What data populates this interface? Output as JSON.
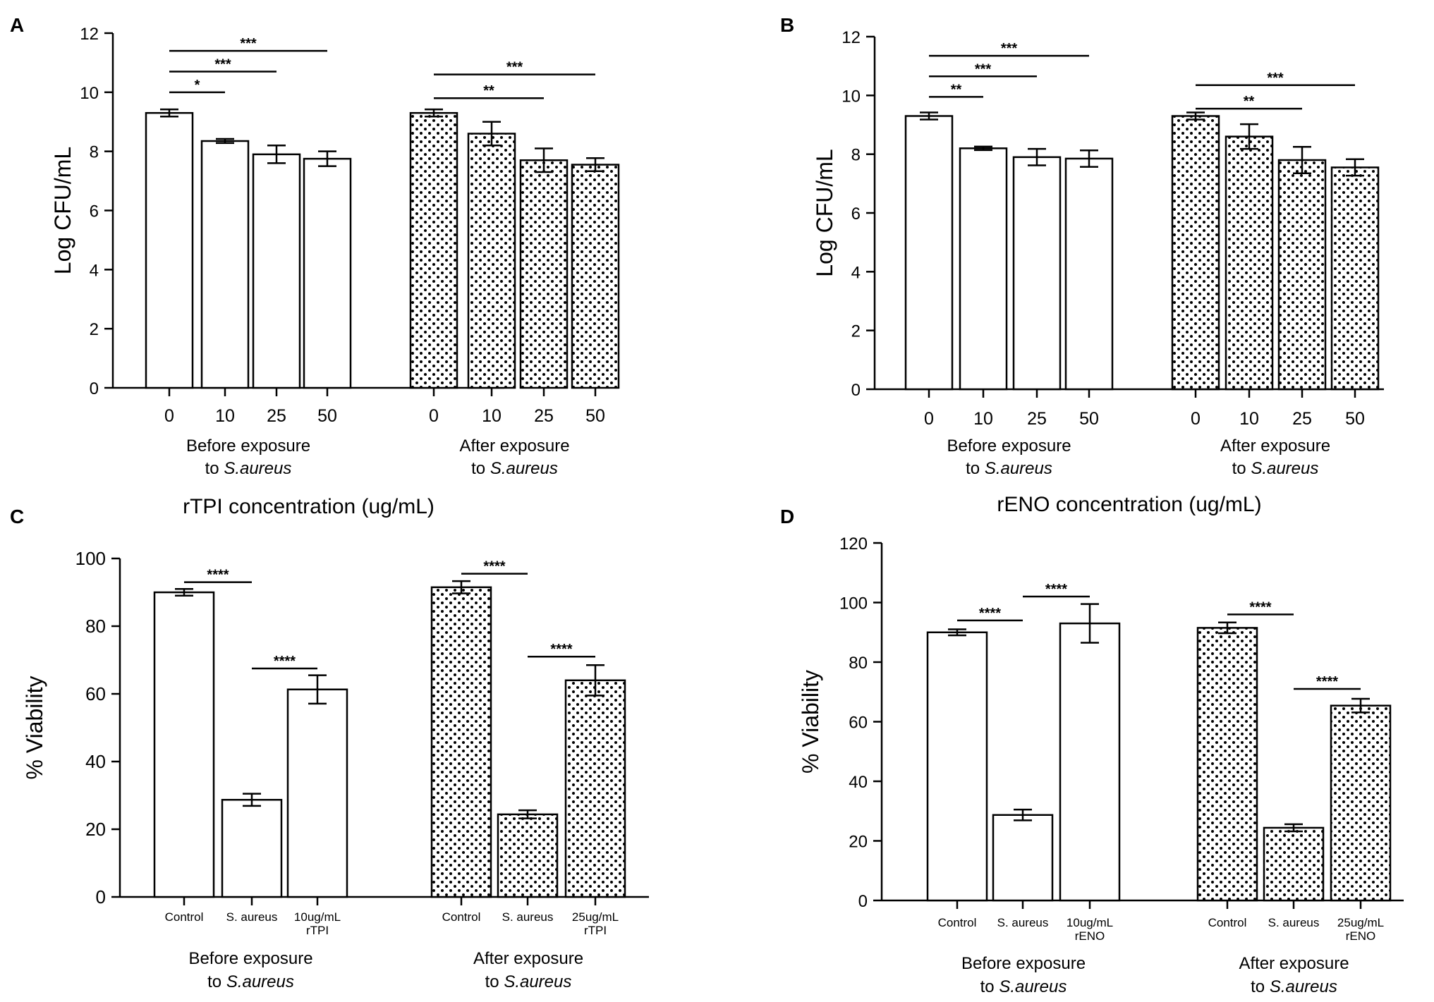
{
  "figure": {
    "colors": {
      "ink": "#000000",
      "background": "#ffffff"
    }
  },
  "chart_data": [
    {
      "type": "bar",
      "panel": "A",
      "ylabel": "Log CFU/mL",
      "xlabel": "rTPI concentration (ug/mL)",
      "ylim": [
        0,
        12
      ],
      "yticks": [
        "0",
        "2",
        "4",
        "6",
        "8",
        "10",
        "12"
      ],
      "groups": [
        {
          "label_line1": "Before exposure",
          "label_line2_prefix": "to ",
          "label_line2_italic": "S.aureus",
          "pattern": "solid",
          "categories": [
            "0",
            "10",
            "25",
            "50"
          ],
          "values": [
            9.3,
            8.35,
            7.9,
            7.75
          ],
          "errors": [
            0.12,
            0.07,
            0.3,
            0.25
          ]
        },
        {
          "label_line1": "After exposure",
          "label_line2_prefix": "to ",
          "label_line2_italic": "S.aureus",
          "pattern": "dots",
          "categories": [
            "0",
            "10",
            "25",
            "50"
          ],
          "values": [
            9.3,
            8.6,
            7.7,
            7.55
          ],
          "errors": [
            0.12,
            0.4,
            0.4,
            0.22
          ]
        }
      ],
      "significance": [
        {
          "from": [
            0,
            0
          ],
          "to": [
            0,
            1
          ],
          "label": "*",
          "y": 10.0
        },
        {
          "from": [
            0,
            0
          ],
          "to": [
            0,
            2
          ],
          "label": "***",
          "y": 10.7
        },
        {
          "from": [
            0,
            0
          ],
          "to": [
            0,
            3
          ],
          "label": "***",
          "y": 11.4
        },
        {
          "from": [
            1,
            0
          ],
          "to": [
            1,
            2
          ],
          "label": "**",
          "y": 9.8
        },
        {
          "from": [
            1,
            0
          ],
          "to": [
            1,
            3
          ],
          "label": "***",
          "y": 10.6
        }
      ]
    },
    {
      "type": "bar",
      "panel": "B",
      "ylabel": "Log CFU/mL",
      "xlabel": "rENO concentration (ug/mL)",
      "ylim": [
        0,
        12
      ],
      "yticks": [
        "0",
        "2",
        "4",
        "6",
        "8",
        "10",
        "12"
      ],
      "groups": [
        {
          "label_line1": "Before exposure",
          "label_line2_prefix": "to ",
          "label_line2_italic": "S.aureus",
          "pattern": "solid",
          "categories": [
            "0",
            "10",
            "25",
            "50"
          ],
          "values": [
            9.3,
            8.2,
            7.9,
            7.85
          ],
          "errors": [
            0.12,
            0.06,
            0.28,
            0.28
          ]
        },
        {
          "label_line1": "After exposure",
          "label_line2_prefix": "to ",
          "label_line2_italic": "S.aureus",
          "pattern": "dots",
          "categories": [
            "0",
            "10",
            "25",
            "50"
          ],
          "values": [
            9.3,
            8.6,
            7.8,
            7.55
          ],
          "errors": [
            0.12,
            0.42,
            0.45,
            0.28
          ]
        }
      ],
      "significance": [
        {
          "from": [
            0,
            0
          ],
          "to": [
            0,
            1
          ],
          "label": "**",
          "y": 9.95
        },
        {
          "from": [
            0,
            0
          ],
          "to": [
            0,
            2
          ],
          "label": "***",
          "y": 10.65
        },
        {
          "from": [
            0,
            0
          ],
          "to": [
            0,
            3
          ],
          "label": "***",
          "y": 11.35
        },
        {
          "from": [
            1,
            0
          ],
          "to": [
            1,
            2
          ],
          "label": "**",
          "y": 9.55
        },
        {
          "from": [
            1,
            0
          ],
          "to": [
            1,
            3
          ],
          "label": "***",
          "y": 10.35
        }
      ]
    },
    {
      "type": "bar",
      "panel": "C",
      "ylabel": "% Viability",
      "xlabel": "",
      "ylim": [
        0,
        100
      ],
      "yticks": [
        "0",
        "20",
        "40",
        "60",
        "80",
        "100"
      ],
      "groups": [
        {
          "label_line1": "Before exposure",
          "label_line2_prefix": "to ",
          "label_line2_italic": "S.aureus",
          "pattern": "solid",
          "categories": [
            "Control",
            "S. aureus",
            "10ug/mL\nrTPI"
          ],
          "values": [
            90,
            28.7,
            61.3
          ],
          "errors": [
            1.0,
            1.8,
            4.2
          ]
        },
        {
          "label_line1": "After exposure",
          "label_line2_prefix": "to ",
          "label_line2_italic": "S.aureus",
          "pattern": "dots",
          "categories": [
            "Control",
            "S. aureus",
            "25ug/mL\nrTPI"
          ],
          "values": [
            91.5,
            24.4,
            64.0
          ],
          "errors": [
            1.8,
            1.2,
            4.5
          ]
        }
      ],
      "significance": [
        {
          "from": [
            0,
            0
          ],
          "to": [
            0,
            1
          ],
          "label": "****",
          "y": 93
        },
        {
          "from": [
            0,
            1
          ],
          "to": [
            0,
            2
          ],
          "label": "****",
          "y": 67.5
        },
        {
          "from": [
            1,
            0
          ],
          "to": [
            1,
            1
          ],
          "label": "****",
          "y": 95.5
        },
        {
          "from": [
            1,
            1
          ],
          "to": [
            1,
            2
          ],
          "label": "****",
          "y": 71
        }
      ]
    },
    {
      "type": "bar",
      "panel": "D",
      "ylabel": "% Viability",
      "xlabel": "",
      "ylim": [
        0,
        120
      ],
      "yticks": [
        "0",
        "20",
        "40",
        "60",
        "80",
        "100",
        "120"
      ],
      "groups": [
        {
          "label_line1": "Before exposure",
          "label_line2_prefix": "to ",
          "label_line2_italic": "S.aureus",
          "pattern": "solid",
          "categories": [
            "Control",
            "S. aureus",
            "10ug/mL\nrENO"
          ],
          "values": [
            90,
            28.7,
            93.0
          ],
          "errors": [
            1.0,
            1.8,
            6.5
          ]
        },
        {
          "label_line1": "After exposure",
          "label_line2_prefix": "to ",
          "label_line2_italic": "S.aureus",
          "pattern": "dots",
          "categories": [
            "Control",
            "S. aureus",
            "25ug/mL\nrENO"
          ],
          "values": [
            91.5,
            24.4,
            65.4
          ],
          "errors": [
            1.8,
            1.2,
            2.3
          ]
        }
      ],
      "significance": [
        {
          "from": [
            0,
            0
          ],
          "to": [
            0,
            1
          ],
          "label": "****",
          "y": 94
        },
        {
          "from": [
            0,
            1
          ],
          "to": [
            0,
            2
          ],
          "label": "****",
          "y": 102
        },
        {
          "from": [
            1,
            0
          ],
          "to": [
            1,
            1
          ],
          "label": "****",
          "y": 96
        },
        {
          "from": [
            1,
            1
          ],
          "to": [
            1,
            2
          ],
          "label": "****",
          "y": 71
        }
      ]
    }
  ]
}
